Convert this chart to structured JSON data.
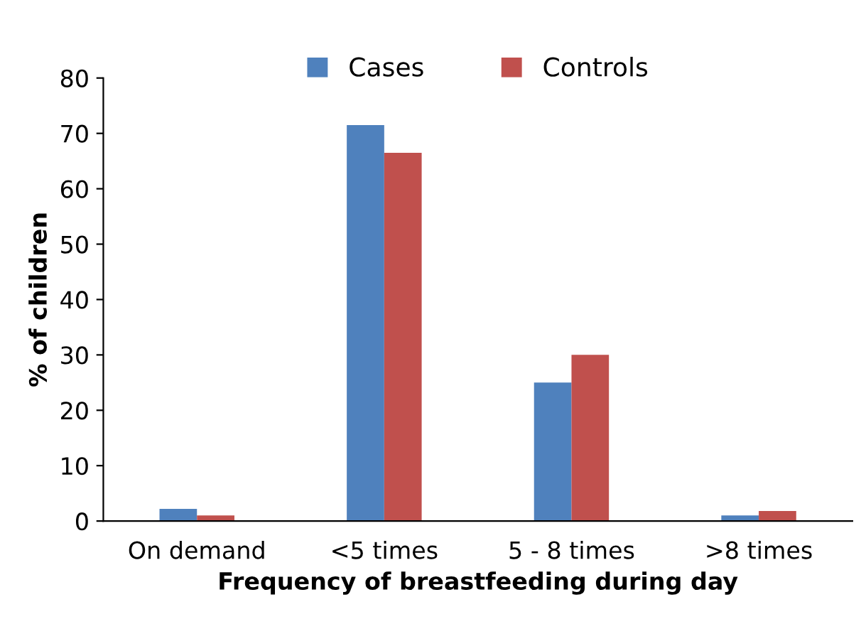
{
  "chart_data": {
    "type": "bar",
    "xlabel": "Frequency of breastfeeding during day",
    "ylabel": "% of children",
    "categories": [
      "On demand",
      "<5 times",
      "5 - 8 times",
      ">8 times"
    ],
    "series": [
      {
        "name": "Cases",
        "color": "#4f81bd",
        "values": [
          2.2,
          71.5,
          25,
          1
        ]
      },
      {
        "name": "Controls",
        "color": "#c0504d",
        "values": [
          1,
          66.5,
          30,
          1.8
        ]
      }
    ],
    "ylim": [
      0,
      80
    ],
    "yticks": [
      0,
      10,
      20,
      30,
      40,
      50,
      60,
      70,
      80
    ],
    "grid": false,
    "legend": "top"
  }
}
